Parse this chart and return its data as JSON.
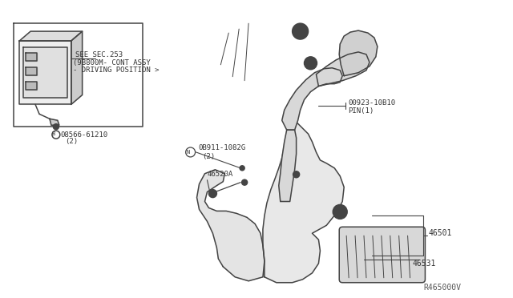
{
  "bg_color": "#ffffff",
  "line_color": "#444444",
  "ref_code": "R465000V",
  "labels": {
    "see_sec": "SEE SEC.253",
    "cont_assy": "(9B800M- CONT ASSY",
    "driving": "- DRIVING POSITION >",
    "part1_sym": "B",
    "part1": "08566-61210",
    "part1_qty": "(2)",
    "part2_sym": "N",
    "part2": "0B911-1082G",
    "part2_qty": "(2)",
    "part3": "46520A",
    "part4": "00923-10B10",
    "part4b": "PIN(1)",
    "part5": "46501",
    "part6": "46531"
  },
  "figsize": [
    6.4,
    3.72
  ],
  "dpi": 100
}
